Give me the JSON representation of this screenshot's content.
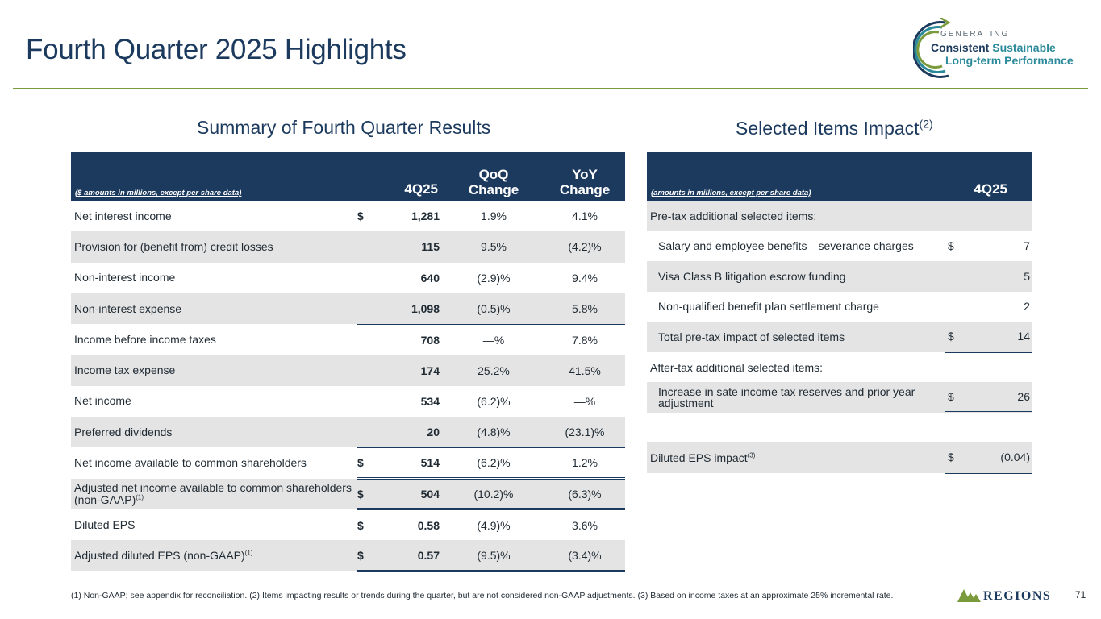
{
  "header": {
    "title": "Fourth Quarter 2025 Highlights",
    "logo": {
      "generating": "GENERATING",
      "consistent": "Consistent",
      "sustainable": "Sustainable",
      "long_term": "Long-term Performance",
      "colors": {
        "navy": "#1c3a5e",
        "teal": "#2a8a9a",
        "green": "#7a9a3b"
      }
    }
  },
  "summary": {
    "heading": "Summary of Fourth Quarter Results",
    "note": "($ amounts in millions, except per share data)",
    "col_q": "4Q25",
    "col_qoq_1": "QoQ",
    "col_qoq_2": "Change",
    "col_yoy_1": "YoY",
    "col_yoy_2": "Change",
    "rows": [
      {
        "label": "Net interest income",
        "dollar": "$",
        "value": "1,281",
        "qoq": "1.9%",
        "yoy": "4.1%"
      },
      {
        "label": "Provision for (benefit from) credit losses",
        "dollar": "",
        "value": "115",
        "qoq": "9.5%",
        "yoy": "(4.2)%"
      },
      {
        "label": "Non-interest income",
        "dollar": "",
        "value": "640",
        "qoq": "(2.9)%",
        "yoy": "9.4%"
      },
      {
        "label": "Non-interest expense",
        "dollar": "",
        "value": "1,098",
        "qoq": "(0.5)%",
        "yoy": "5.8%"
      },
      {
        "label": "Income before income taxes",
        "dollar": "",
        "value": "708",
        "qoq": "—%",
        "yoy": "7.8%"
      },
      {
        "label": "Income tax expense",
        "dollar": "",
        "value": "174",
        "qoq": "25.2%",
        "yoy": "41.5%"
      },
      {
        "label": "Net income",
        "dollar": "",
        "value": "534",
        "qoq": "(6.2)%",
        "yoy": "—%"
      },
      {
        "label": "Preferred dividends",
        "dollar": "",
        "value": "20",
        "qoq": "(4.8)%",
        "yoy": "(23.1)%"
      },
      {
        "label": "Net income available to common shareholders",
        "dollar": "$",
        "value": "514",
        "qoq": "(6.2)%",
        "yoy": "1.2%"
      },
      {
        "label": "Adjusted net income available to common shareholders (non-GAAP)",
        "sup": "(1)",
        "dollar": "$",
        "value": "504",
        "qoq": "(10.2)%",
        "yoy": "(6.3)%"
      },
      {
        "label": "Diluted EPS",
        "dollar": "$",
        "value": "0.58",
        "qoq": "(4.9)%",
        "yoy": "3.6%"
      },
      {
        "label": "Adjusted diluted EPS (non-GAAP)",
        "sup": "(1)",
        "dollar": "$",
        "value": "0.57",
        "qoq": "(9.5)%",
        "yoy": "(3.4)%"
      }
    ]
  },
  "selected": {
    "heading": "Selected Items Impact",
    "heading_sup": "(2)",
    "note": "(amounts in millions, except per share data)",
    "col_q": "4Q25",
    "pretax_header": "Pre-tax additional selected items:",
    "pretax_rows": [
      {
        "label": "Salary and employee benefits—severance charges",
        "dollar": "$",
        "value": "7"
      },
      {
        "label": "Visa Class B litigation escrow funding",
        "dollar": "",
        "value": "5"
      },
      {
        "label": "Non-qualified benefit plan settlement charge",
        "dollar": "",
        "value": "2"
      }
    ],
    "pretax_total": {
      "label": "Total pre-tax impact of selected items",
      "dollar": "$",
      "value": "14"
    },
    "aftertax_header": "After-tax additional selected items:",
    "aftertax_row": {
      "label": "Increase in sate income tax reserves and prior year adjustment",
      "dollar": "$",
      "value": "26"
    },
    "eps": {
      "label": "Diluted EPS impact",
      "sup": "(3)",
      "dollar": "$",
      "value": "(0.04)"
    }
  },
  "footer": {
    "footnote": "(1) Non-GAAP; see appendix for reconciliation. (2) Items impacting results or trends during the quarter, but are not considered non-GAAP adjustments. (3) Based on income taxes at an approximate 25% incremental rate.",
    "brand": "REGIONS",
    "page": "71"
  }
}
